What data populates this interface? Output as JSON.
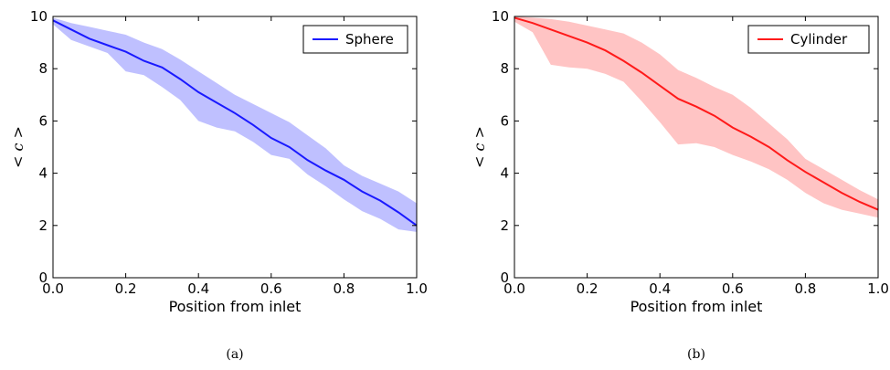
{
  "chart_data": [
    {
      "type": "area",
      "caption": "(a)",
      "xlabel": "Position from inlet",
      "ylabel": "< c >",
      "xlim": [
        0,
        1
      ],
      "ylim": [
        0,
        10
      ],
      "xticks": [
        "0.0",
        "0.2",
        "0.4",
        "0.6",
        "0.8",
        "1.0"
      ],
      "yticks": [
        "0",
        "2",
        "4",
        "6",
        "8",
        "10"
      ],
      "grid": false,
      "legend_position": "top-right",
      "line_color": "#1a1aff",
      "band_color": "#bfc0ff",
      "series": [
        {
          "name": "Sphere",
          "x": [
            0.0,
            0.05,
            0.1,
            0.15,
            0.2,
            0.25,
            0.3,
            0.35,
            0.4,
            0.45,
            0.5,
            0.55,
            0.6,
            0.65,
            0.7,
            0.75,
            0.8,
            0.85,
            0.9,
            0.95,
            1.0
          ],
          "mean": [
            9.85,
            9.5,
            9.15,
            8.9,
            8.65,
            8.3,
            8.05,
            7.6,
            7.1,
            6.7,
            6.3,
            5.85,
            5.35,
            5.0,
            4.5,
            4.1,
            3.75,
            3.3,
            2.95,
            2.5,
            2.0
          ],
          "upper": [
            9.95,
            9.75,
            9.6,
            9.45,
            9.3,
            9.0,
            8.75,
            8.35,
            7.9,
            7.45,
            7.0,
            6.65,
            6.3,
            5.95,
            5.45,
            4.95,
            4.3,
            3.9,
            3.6,
            3.3,
            2.85
          ],
          "lower": [
            9.7,
            9.1,
            8.85,
            8.6,
            7.9,
            7.75,
            7.3,
            6.8,
            6.0,
            5.75,
            5.6,
            5.2,
            4.7,
            4.55,
            3.95,
            3.5,
            3.0,
            2.55,
            2.25,
            1.85,
            1.75
          ]
        }
      ]
    },
    {
      "type": "area",
      "caption": "(b)",
      "xlabel": "Position from inlet",
      "ylabel": "< c >",
      "xlim": [
        0,
        1
      ],
      "ylim": [
        0,
        10
      ],
      "xticks": [
        "0.0",
        "0.2",
        "0.4",
        "0.6",
        "0.8",
        "1.0"
      ],
      "yticks": [
        "0",
        "2",
        "4",
        "6",
        "8",
        "10"
      ],
      "grid": false,
      "legend_position": "top-right",
      "line_color": "#ff1a1a",
      "band_color": "#ffc4c4",
      "series": [
        {
          "name": "Cylinder",
          "x": [
            0.0,
            0.05,
            0.1,
            0.15,
            0.2,
            0.25,
            0.3,
            0.35,
            0.4,
            0.45,
            0.5,
            0.55,
            0.6,
            0.65,
            0.7,
            0.75,
            0.8,
            0.85,
            0.9,
            0.95,
            1.0
          ],
          "mean": [
            9.95,
            9.75,
            9.5,
            9.25,
            9.0,
            8.7,
            8.3,
            7.85,
            7.35,
            6.85,
            6.55,
            6.2,
            5.75,
            5.4,
            5.0,
            4.5,
            4.05,
            3.65,
            3.25,
            2.9,
            2.6
          ],
          "upper": [
            10.0,
            9.95,
            9.9,
            9.8,
            9.65,
            9.5,
            9.35,
            9.0,
            8.55,
            7.95,
            7.65,
            7.3,
            7.0,
            6.5,
            5.9,
            5.3,
            4.55,
            4.15,
            3.75,
            3.35,
            3.0
          ],
          "lower": [
            9.8,
            9.4,
            8.15,
            8.05,
            8.0,
            7.8,
            7.5,
            6.75,
            5.95,
            5.1,
            5.15,
            5.0,
            4.7,
            4.45,
            4.15,
            3.75,
            3.25,
            2.85,
            2.6,
            2.45,
            2.3
          ]
        }
      ]
    }
  ]
}
